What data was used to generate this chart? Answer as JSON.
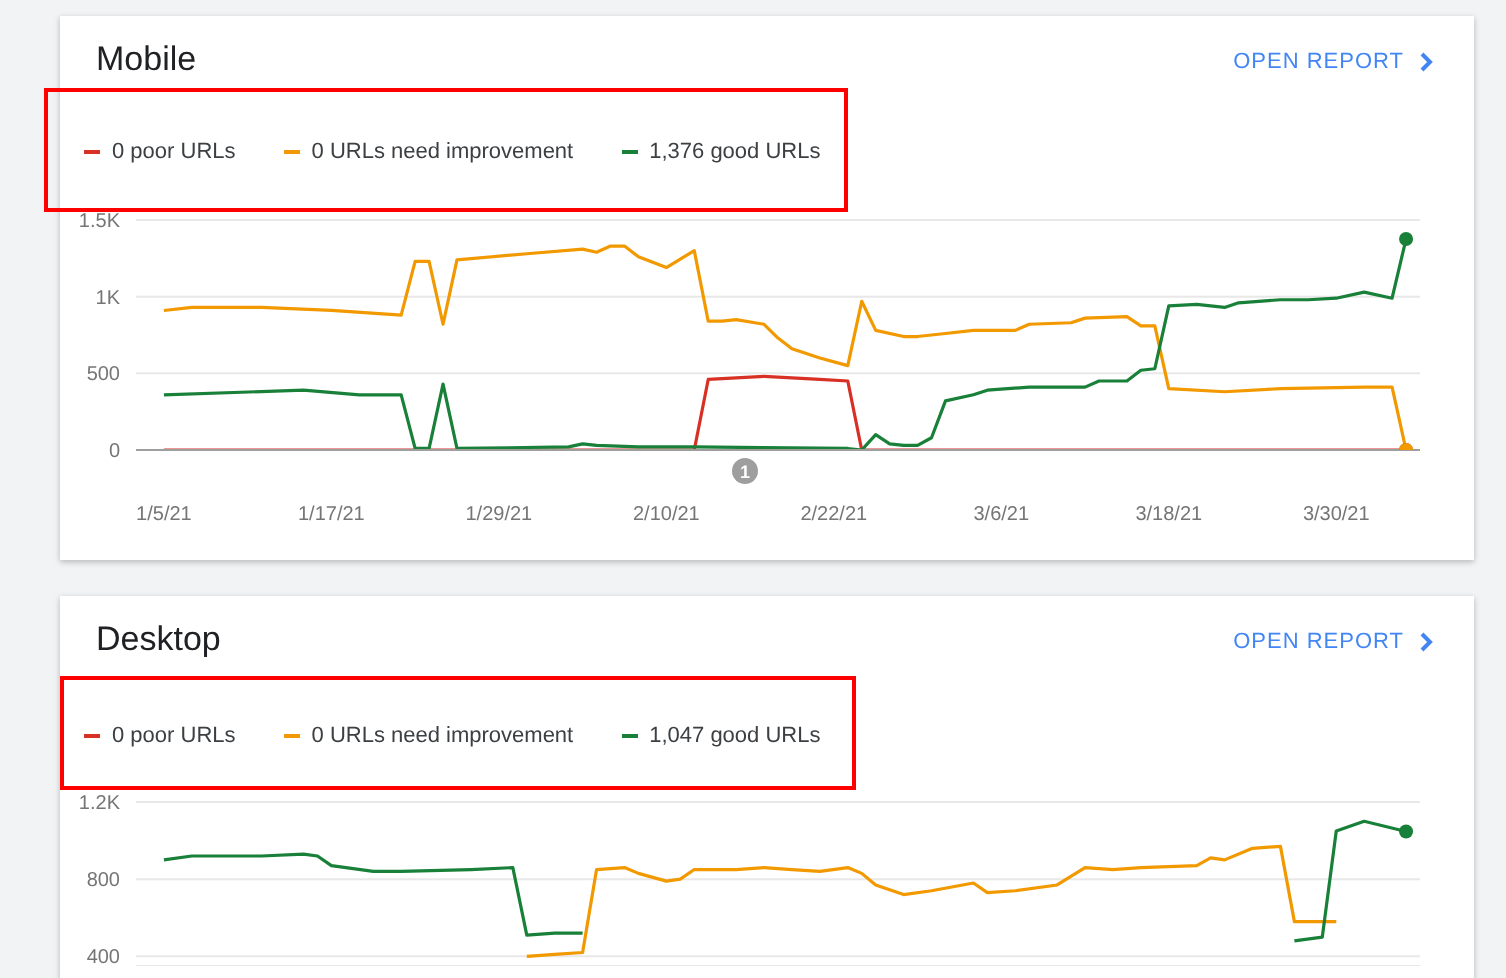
{
  "chart_data": [
    {
      "type": "line",
      "title": "Mobile",
      "annotations": [
        "OPEN REPORT",
        "1"
      ],
      "legend": "top left",
      "grid": "y",
      "xlim": [
        "--01-03",
        "--04-05"
      ],
      "xticks": [
        {
          "value": "--01-05",
          "label": "1/5/21"
        },
        {
          "value": "--01-17",
          "label": "1/17/21"
        },
        {
          "value": "--01-29",
          "label": "1/29/21"
        },
        {
          "value": "--02-10",
          "label": "2/10/21"
        },
        {
          "value": "--02-22",
          "label": "2/22/21"
        },
        {
          "value": "--03-06",
          "label": "3/6/21"
        },
        {
          "value": "--03-18",
          "label": "3/18/21"
        },
        {
          "value": "--03-30",
          "label": "3/30/21"
        }
      ],
      "ylim": [
        0,
        1500
      ],
      "yticks": [
        0,
        500,
        {
          "value": 1000,
          "label": "1K"
        },
        {
          "value": 1500,
          "label": "1.5K"
        }
      ],
      "series": [
        {
          "name": "0 poor URLs",
          "color": "#d93025",
          "x": [
            "--01-05",
            "--02-12",
            "--02-13",
            "--02-17",
            "--02-21",
            "--02-23",
            "--02-24",
            "--04-04"
          ],
          "values": [
            0,
            0,
            460,
            480,
            460,
            450,
            0,
            0
          ]
        },
        {
          "name": "0 URLs need improvement",
          "color": "#f29900",
          "x": [
            "--01-05",
            "--01-07",
            "--01-12",
            "--01-17",
            "--01-22",
            "--01-23",
            "--01-24",
            "--01-25",
            "--01-26",
            "--01-31",
            "--02-04",
            "--02-05",
            "--02-06",
            "--02-07",
            "--02-08",
            "--02-10",
            "--02-12",
            "--02-13",
            "--02-14",
            "--02-15",
            "--02-17",
            "--02-18",
            "--02-19",
            "--02-21",
            "--02-23",
            "--02-24",
            "--02-25",
            "--02-27",
            "--02-28",
            "--03-02",
            "--03-04",
            "--03-07",
            "--03-08",
            "--03-11",
            "--03-12",
            "--03-15",
            "--03-16",
            "--03-17",
            "--03-18",
            "--03-22",
            "--03-26",
            "--04-01",
            "--04-03",
            "--04-04"
          ],
          "values": [
            910,
            930,
            930,
            910,
            880,
            1230,
            1230,
            820,
            1240,
            1280,
            1310,
            1290,
            1330,
            1330,
            1260,
            1190,
            1300,
            840,
            840,
            850,
            820,
            730,
            660,
            600,
            550,
            970,
            780,
            740,
            740,
            760,
            780,
            780,
            820,
            830,
            860,
            870,
            810,
            810,
            400,
            380,
            400,
            410,
            410,
            0
          ]
        },
        {
          "name": "1,376 good URLs",
          "color": "#188038",
          "x": [
            "--01-05",
            "--01-15",
            "--01-19",
            "--01-22",
            "--01-23",
            "--01-24",
            "--01-25",
            "--01-26",
            "--02-03",
            "--02-04",
            "--02-05",
            "--02-08",
            "--02-12",
            "--02-23",
            "--02-24",
            "--02-25",
            "--02-26",
            "--02-27",
            "--02-28",
            "--03-01",
            "--03-02",
            "--03-04",
            "--03-05",
            "--03-08",
            "--03-12",
            "--03-13",
            "--03-15",
            "--03-16",
            "--03-17",
            "--03-18",
            "--03-20",
            "--03-22",
            "--03-23",
            "--03-26",
            "--03-28",
            "--03-30",
            "--04-01",
            "--04-03",
            "--04-04"
          ],
          "values": [
            360,
            390,
            360,
            360,
            10,
            10,
            430,
            10,
            20,
            40,
            30,
            20,
            20,
            10,
            0,
            100,
            40,
            30,
            30,
            80,
            320,
            360,
            390,
            410,
            410,
            450,
            450,
            520,
            530,
            940,
            950,
            930,
            960,
            980,
            980,
            990,
            1030,
            990,
            1376
          ]
        }
      ]
    },
    {
      "type": "line",
      "title": "Desktop",
      "annotations": [
        "OPEN REPORT"
      ],
      "legend": "top left",
      "grid": "y",
      "tick_labels": "y",
      "xlim": [
        "--01-03",
        "--04-05"
      ],
      "ylim": [
        350,
        1200
      ],
      "yticks": [
        400,
        800,
        {
          "value": 1200,
          "label": "1.2K"
        }
      ],
      "series": [
        {
          "name": "0 poor URLs",
          "color": "#d93025"
        },
        {
          "name": "0 URLs need improvement",
          "color": "#f29900",
          "x": [
            "--01-31",
            "--02-02",
            "--02-04",
            "--02-05",
            "--02-07",
            "--02-08",
            "--02-10",
            "--02-11",
            "--02-12",
            "--02-15",
            "--02-17",
            "--02-19",
            "--02-21",
            "--02-23",
            "--02-24",
            "--02-25",
            "--02-27",
            "--03-01",
            "--03-04",
            "--03-05",
            "--03-07",
            "--03-10",
            "--03-12",
            "--03-14",
            "--03-16",
            "--03-20",
            "--03-21",
            "--03-22",
            "--03-24",
            "--03-26",
            "--03-27",
            "--03-30"
          ],
          "values": [
            400,
            410,
            420,
            850,
            860,
            830,
            790,
            800,
            850,
            850,
            860,
            850,
            840,
            860,
            830,
            770,
            720,
            740,
            780,
            730,
            740,
            770,
            860,
            850,
            860,
            870,
            910,
            900,
            960,
            970,
            580,
            580
          ]
        },
        {
          "name": "1,047 good URLs",
          "color": "#188038",
          "x": [
            "--01-05",
            "--01-07",
            "--01-12",
            "--01-15",
            "--01-16",
            "--01-17",
            "--01-20",
            "--01-22",
            "--01-27",
            "--01-30",
            "--01-31",
            "--02-02",
            "--02-04",
            "--02-05",
            "--03-26",
            "--03-27",
            "--03-29",
            "--03-30",
            "--04-01",
            "--04-04"
          ],
          "values": [
            900,
            920,
            920,
            930,
            920,
            870,
            840,
            840,
            850,
            860,
            510,
            520,
            520,
            null,
            null,
            480,
            500,
            1050,
            1100,
            1047
          ]
        }
      ]
    }
  ]
}
